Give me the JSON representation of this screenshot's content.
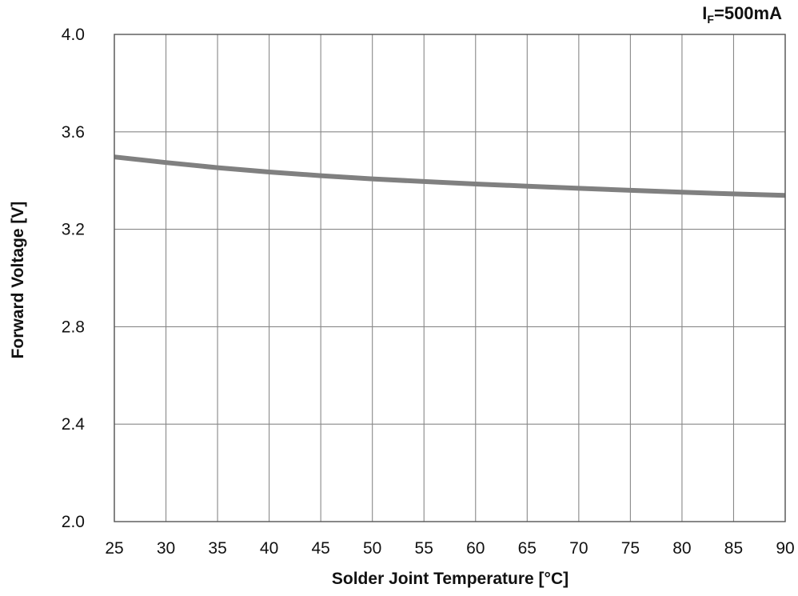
{
  "chart_data": {
    "type": "line",
    "title": "",
    "annotation": {
      "symbol": "I",
      "subscript": "F",
      "value": "=500mA"
    },
    "xlabel": "Solder Joint Temperature [°C]",
    "ylabel": "Forward Voltage [V]",
    "xlim": [
      25,
      90
    ],
    "ylim": [
      2.0,
      4.0
    ],
    "x_ticks": [
      25,
      30,
      35,
      40,
      45,
      50,
      55,
      60,
      65,
      70,
      75,
      80,
      85,
      90
    ],
    "x_tick_labels": [
      "25",
      "30",
      "35",
      "40",
      "45",
      "50",
      "55",
      "60",
      "65",
      "70",
      "75",
      "80",
      "85",
      "90"
    ],
    "y_ticks": [
      2.0,
      2.4,
      2.8,
      3.2,
      3.6,
      4.0
    ],
    "y_tick_labels": [
      "2.0",
      "2.4",
      "2.8",
      "3.2",
      "3.6",
      "4.0"
    ],
    "grid": true,
    "legend": "none",
    "series": [
      {
        "color": "#808080",
        "x": [
          25,
          30,
          35,
          40,
          45,
          50,
          55,
          60,
          65,
          70,
          75,
          80,
          85,
          90
        ],
        "y": [
          3.497,
          3.474,
          3.453,
          3.435,
          3.42,
          3.407,
          3.396,
          3.386,
          3.377,
          3.368,
          3.36,
          3.352,
          3.345,
          3.339
        ]
      }
    ]
  }
}
